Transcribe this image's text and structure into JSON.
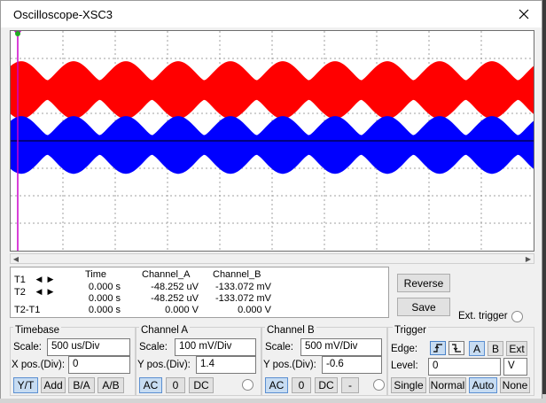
{
  "window": {
    "title": "Oscilloscope-XSC3"
  },
  "colors": {
    "channel_a": "#ff0000",
    "channel_b": "#0000ff",
    "grid": "#a0a0a0"
  },
  "readout": {
    "headers": [
      "Time",
      "Channel_A",
      "Channel_B"
    ],
    "rows": [
      {
        "label": "T1",
        "time": "0.000 s",
        "a": "-48.252 uV",
        "b": "-133.072 mV"
      },
      {
        "label": "T2",
        "time": "0.000 s",
        "a": "-48.252 uV",
        "b": "-133.072 mV"
      },
      {
        "label": "T2-T1",
        "time": "0.000 s",
        "a": "0.000 V",
        "b": "0.000 V"
      }
    ]
  },
  "buttons": {
    "reverse": "Reverse",
    "save": "Save",
    "ext_trigger": "Ext. trigger"
  },
  "timebase": {
    "title": "Timebase",
    "scale_label": "Scale:",
    "scale": "500 us/Div",
    "xpos_label": "X pos.(Div):",
    "xpos": "0",
    "modes": [
      "Y/T",
      "Add",
      "B/A",
      "A/B"
    ]
  },
  "channel_a": {
    "title": "Channel A",
    "scale_label": "Scale:",
    "scale": "100 mV/Div",
    "ypos_label": "Y pos.(Div):",
    "ypos": "1.4",
    "coupling": [
      "AC",
      "0",
      "DC"
    ]
  },
  "channel_b": {
    "title": "Channel B",
    "scale_label": "Scale:",
    "scale": "500 mV/Div",
    "ypos_label": "Y pos.(Div):",
    "ypos": "-0.6",
    "coupling": [
      "AC",
      "0",
      "DC",
      "-"
    ]
  },
  "trigger": {
    "title": "Trigger",
    "edge_label": "Edge:",
    "sources": [
      "A",
      "B",
      "Ext"
    ],
    "level_label": "Level:",
    "level": "0",
    "level_unit": "V",
    "modes": [
      "Single",
      "Normal",
      "Auto",
      "None"
    ]
  }
}
